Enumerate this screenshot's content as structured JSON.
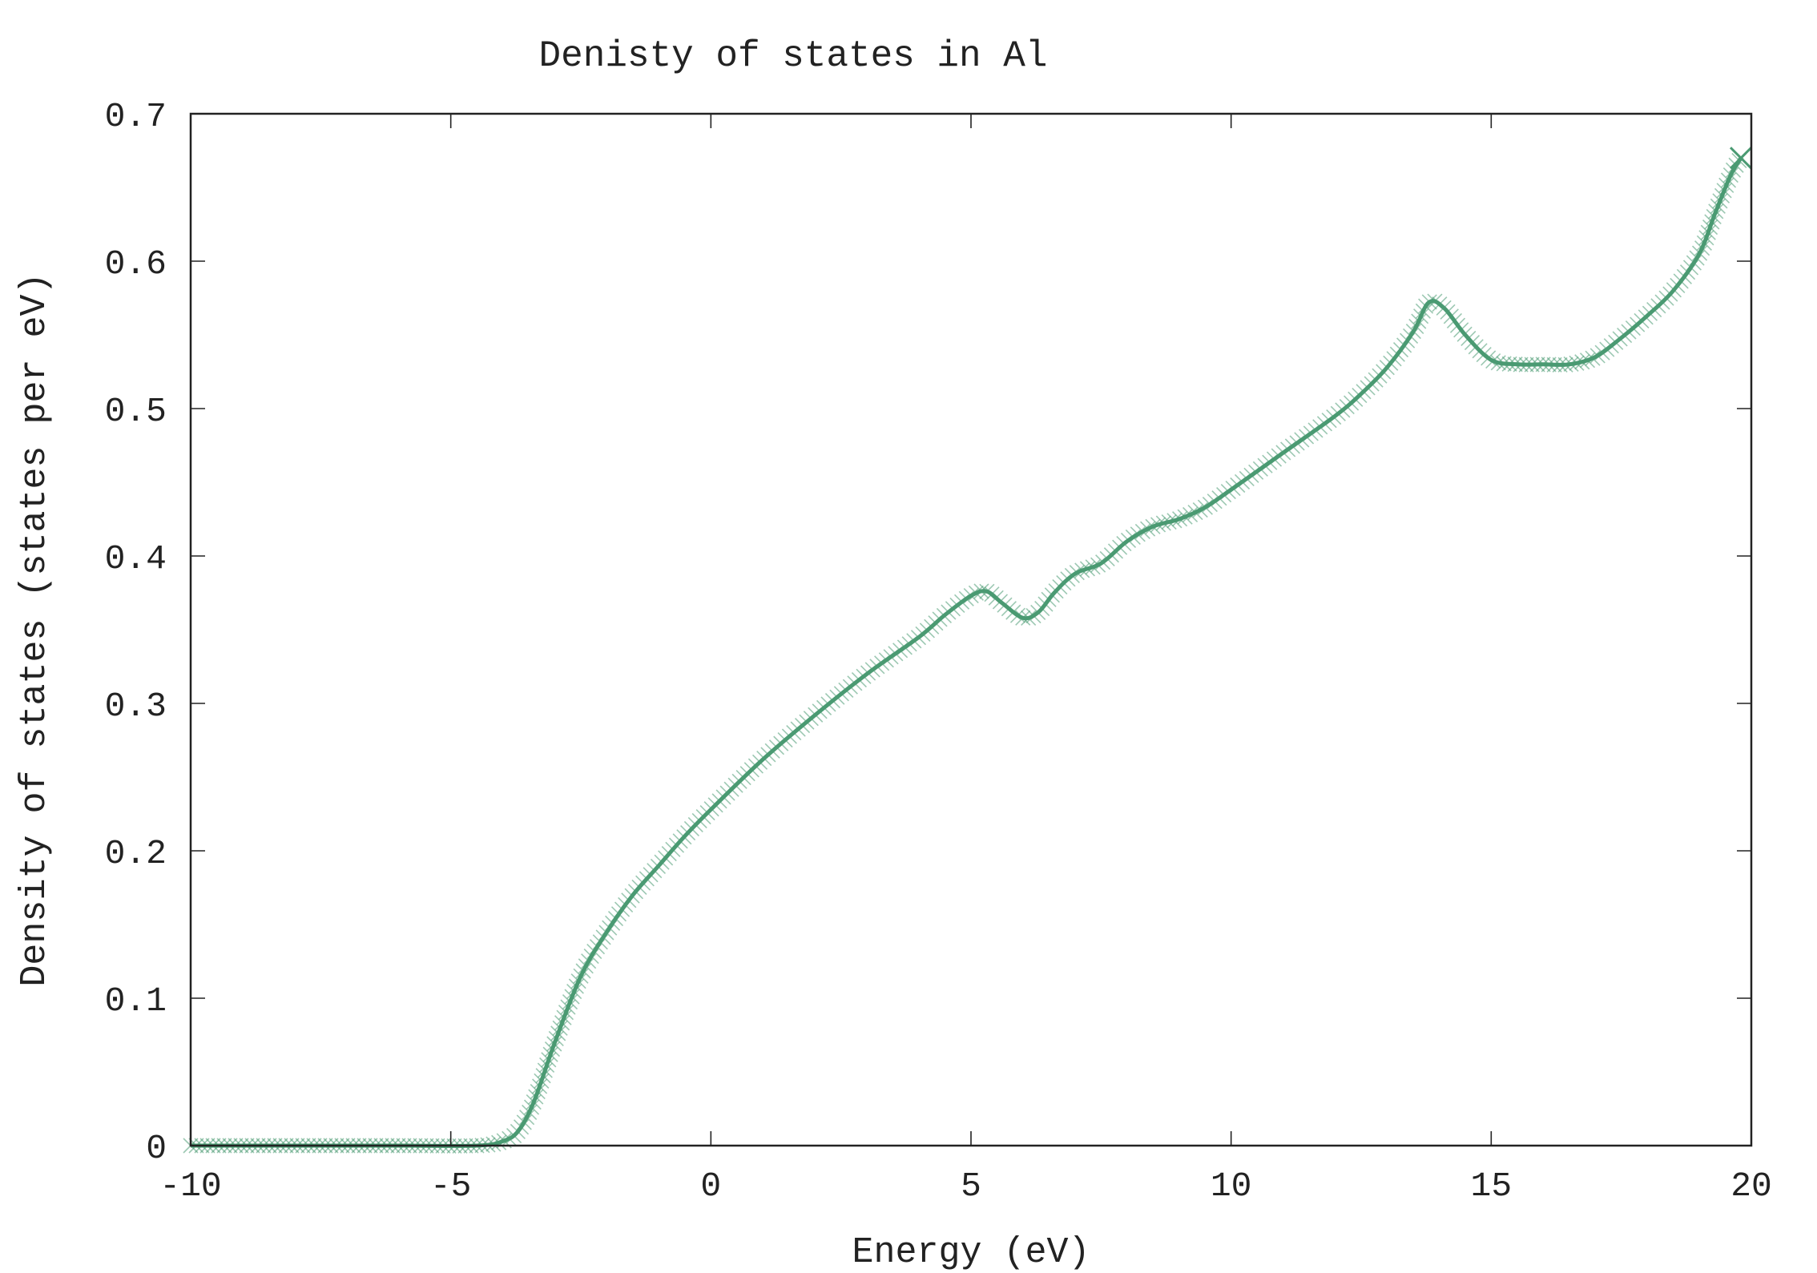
{
  "chart_data": {
    "type": "line",
    "title": "Denisty of states in Al",
    "xlabel": "Energy (eV)",
    "ylabel": "Density of states (states per eV)",
    "xlim": [
      -10,
      20
    ],
    "ylim": [
      0,
      0.7
    ],
    "xticks": [
      "-10",
      "-5",
      "0",
      "5",
      "10",
      "15",
      "20"
    ],
    "yticks": [
      "0",
      "0.1",
      "0.2",
      "0.3",
      "0.4",
      "0.5",
      "0.6",
      "0.7"
    ],
    "grid": false,
    "legend": "none",
    "series": [
      {
        "color": "#4a9a72",
        "marker": "x",
        "x": [
          -10,
          -8,
          -6,
          -4.5,
          -4,
          -3.7,
          -3.4,
          -3.0,
          -2.5,
          -2.0,
          -1.5,
          -1.0,
          -0.5,
          0,
          1,
          2,
          3,
          4,
          4.5,
          5,
          5.3,
          5.6,
          6.0,
          6.3,
          6.6,
          7.0,
          7.5,
          8.0,
          8.5,
          9.0,
          9.5,
          10,
          11,
          12,
          12.5,
          13,
          13.5,
          13.8,
          14.1,
          14.5,
          15,
          15.5,
          16,
          16.5,
          17,
          17.5,
          18,
          18.5,
          19,
          19.3,
          19.6,
          19.8
        ],
        "y": [
          0,
          0,
          0,
          0,
          0.003,
          0.01,
          0.03,
          0.07,
          0.115,
          0.145,
          0.17,
          0.19,
          0.21,
          0.228,
          0.262,
          0.292,
          0.32,
          0.345,
          0.36,
          0.373,
          0.376,
          0.368,
          0.358,
          0.362,
          0.375,
          0.388,
          0.395,
          0.41,
          0.42,
          0.425,
          0.433,
          0.445,
          0.47,
          0.495,
          0.51,
          0.528,
          0.552,
          0.572,
          0.568,
          0.55,
          0.533,
          0.53,
          0.53,
          0.53,
          0.535,
          0.548,
          0.563,
          0.58,
          0.605,
          0.632,
          0.658,
          0.67
        ]
      }
    ]
  }
}
